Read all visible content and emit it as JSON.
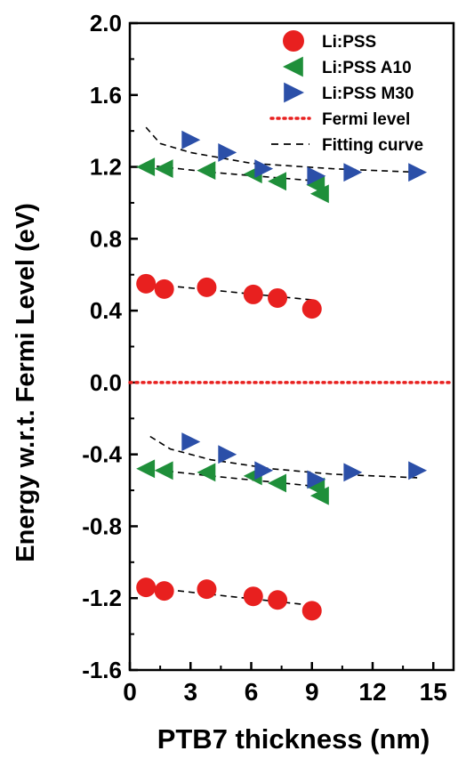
{
  "chart_data": {
    "type": "scatter",
    "xlabel": "PTB7 thickness (nm)",
    "ylabel": "Energy w.r.t. Fermi Level (eV)",
    "xlim": [
      0,
      16
    ],
    "ylim": [
      -1.6,
      2.0
    ],
    "xticks": [
      {
        "value": 0,
        "label": "0"
      },
      {
        "value": 3,
        "label": "3"
      },
      {
        "value": 6,
        "label": "6"
      },
      {
        "value": 9,
        "label": "9"
      },
      {
        "value": 12,
        "label": "12"
      },
      {
        "value": 15,
        "label": "15"
      }
    ],
    "yticks": [
      {
        "value": 2.0,
        "label": "2.0"
      },
      {
        "value": 1.6,
        "label": "1.6"
      },
      {
        "value": 1.2,
        "label": "1.2"
      },
      {
        "value": 0.8,
        "label": "0.8"
      },
      {
        "value": 0.4,
        "label": "0.4"
      },
      {
        "value": 0.0,
        "label": "0.0"
      },
      {
        "value": -0.4,
        "label": "-0.4"
      },
      {
        "value": -0.8,
        "label": "-0.8"
      },
      {
        "value": -1.2,
        "label": "-1.2"
      },
      {
        "value": -1.6,
        "label": "-1.6"
      }
    ],
    "grid": false,
    "legend_position": "top-right",
    "fermi_level": 0.0,
    "series": [
      {
        "name": "Li:PSS",
        "marker": "circle",
        "color": "#e8201f",
        "upper": [
          {
            "x": 0.8,
            "y": 0.55
          },
          {
            "x": 1.7,
            "y": 0.52
          },
          {
            "x": 3.8,
            "y": 0.53
          },
          {
            "x": 6.1,
            "y": 0.49
          },
          {
            "x": 7.3,
            "y": 0.47
          },
          {
            "x": 9.0,
            "y": 0.41
          }
        ],
        "lower": [
          {
            "x": 0.8,
            "y": -1.14
          },
          {
            "x": 1.7,
            "y": -1.16
          },
          {
            "x": 3.8,
            "y": -1.15
          },
          {
            "x": 6.1,
            "y": -1.19
          },
          {
            "x": 7.3,
            "y": -1.21
          },
          {
            "x": 9.0,
            "y": -1.27
          }
        ]
      },
      {
        "name": "Li:PSS A10",
        "marker": "triangle-left",
        "color": "#1f8f3a",
        "upper": [
          {
            "x": 0.8,
            "y": 1.2
          },
          {
            "x": 1.7,
            "y": 1.19
          },
          {
            "x": 3.8,
            "y": 1.18
          },
          {
            "x": 6.1,
            "y": 1.16
          },
          {
            "x": 7.3,
            "y": 1.12
          },
          {
            "x": 9.2,
            "y": 1.1
          },
          {
            "x": 9.4,
            "y": 1.05
          }
        ],
        "lower": [
          {
            "x": 0.8,
            "y": -0.48
          },
          {
            "x": 1.7,
            "y": -0.49
          },
          {
            "x": 3.8,
            "y": -0.5
          },
          {
            "x": 6.1,
            "y": -0.52
          },
          {
            "x": 7.3,
            "y": -0.56
          },
          {
            "x": 9.2,
            "y": -0.58
          },
          {
            "x": 9.4,
            "y": -0.63
          }
        ]
      },
      {
        "name": "Li:PSS M30",
        "marker": "triangle-right",
        "color": "#2b4fa8",
        "upper": [
          {
            "x": 3.0,
            "y": 1.35
          },
          {
            "x": 4.8,
            "y": 1.28
          },
          {
            "x": 6.6,
            "y": 1.19
          },
          {
            "x": 9.2,
            "y": 1.15
          },
          {
            "x": 11.0,
            "y": 1.17
          },
          {
            "x": 14.2,
            "y": 1.17
          }
        ],
        "lower": [
          {
            "x": 3.0,
            "y": -0.33
          },
          {
            "x": 4.8,
            "y": -0.4
          },
          {
            "x": 6.6,
            "y": -0.49
          },
          {
            "x": 9.2,
            "y": -0.54
          },
          {
            "x": 11.0,
            "y": -0.5
          },
          {
            "x": 14.2,
            "y": -0.49
          }
        ]
      }
    ],
    "fitting_curves": [
      {
        "for": "Li:PSS A10 upper",
        "points": [
          [
            0.8,
            1.21
          ],
          [
            4.0,
            1.17
          ],
          [
            9.4,
            1.12
          ]
        ]
      },
      {
        "for": "Li:PSS M30 upper",
        "points": [
          [
            0.8,
            1.42
          ],
          [
            1.5,
            1.33
          ],
          [
            3.0,
            1.28
          ],
          [
            6.0,
            1.22
          ],
          [
            10.0,
            1.19
          ],
          [
            14.2,
            1.17
          ]
        ]
      },
      {
        "for": "Li:PSS upper",
        "points": [
          [
            0.8,
            0.55
          ],
          [
            9.0,
            0.46
          ]
        ]
      },
      {
        "for": "Li:PSS A10 lower",
        "points": [
          [
            0.8,
            -0.48
          ],
          [
            4.0,
            -0.52
          ],
          [
            9.4,
            -0.58
          ]
        ]
      },
      {
        "for": "Li:PSS M30 lower",
        "points": [
          [
            1.0,
            -0.3
          ],
          [
            2.0,
            -0.37
          ],
          [
            4.0,
            -0.43
          ],
          [
            7.0,
            -0.48
          ],
          [
            10.0,
            -0.51
          ],
          [
            14.2,
            -0.53
          ]
        ]
      },
      {
        "for": "Li:PSS lower",
        "points": [
          [
            0.8,
            -1.14
          ],
          [
            9.0,
            -1.24
          ]
        ]
      }
    ],
    "legend": [
      {
        "label": "Li:PSS",
        "kind": "circle",
        "color": "#e8201f"
      },
      {
        "label": "Li:PSS A10",
        "kind": "triangle-left",
        "color": "#1f8f3a"
      },
      {
        "label": "Li:PSS M30",
        "kind": "triangle-right",
        "color": "#2b4fa8"
      },
      {
        "label": "Fermi level",
        "kind": "dotted-line",
        "color": "#e8201f"
      },
      {
        "label": "Fitting curve",
        "kind": "dashed-line",
        "color": "#000000"
      }
    ]
  }
}
